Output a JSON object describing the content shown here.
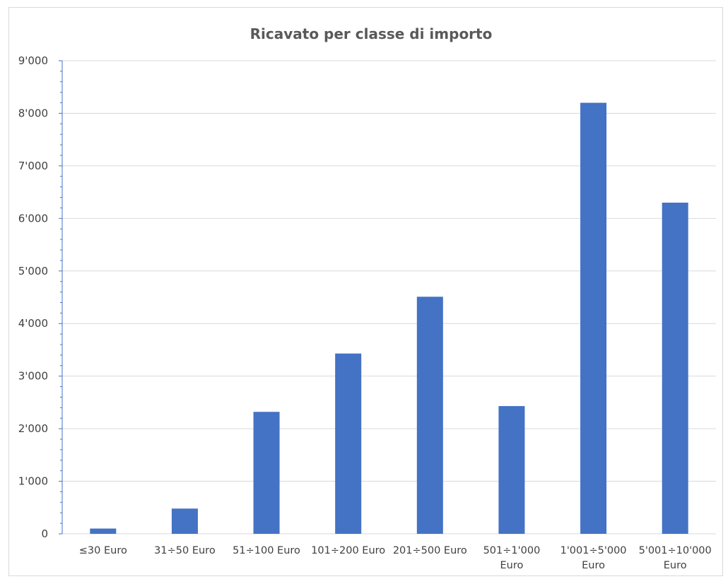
{
  "chart_data": {
    "type": "bar",
    "title": "Ricavato per classe di importo",
    "xlabel": "",
    "ylabel": "",
    "categories": [
      [
        "≤30 Euro"
      ],
      [
        "31÷50 Euro"
      ],
      [
        "51÷100 Euro"
      ],
      [
        "101÷200 Euro"
      ],
      [
        "201÷500 Euro"
      ],
      [
        "501÷1'000",
        "Euro"
      ],
      [
        "1'001÷5'000",
        "Euro"
      ],
      [
        "5'001÷10'000",
        "Euro"
      ]
    ],
    "values": [
      100,
      480,
      2320,
      3430,
      4510,
      2430,
      8200,
      6300
    ],
    "ylim": [
      0,
      9000
    ],
    "yticks": [
      0,
      1000,
      2000,
      3000,
      4000,
      5000,
      6000,
      7000,
      8000,
      9000
    ],
    "ytick_labels": [
      "0",
      "1'000",
      "2'000",
      "3'000",
      "4'000",
      "5'000",
      "6'000",
      "7'000",
      "8'000",
      "9'000"
    ],
    "minor_ticks_per_major": 5,
    "grid": true,
    "legend": "none",
    "colors": {
      "bar": "#4472c4",
      "grid": "#d9d9d9",
      "axis": "#4472c4"
    }
  }
}
